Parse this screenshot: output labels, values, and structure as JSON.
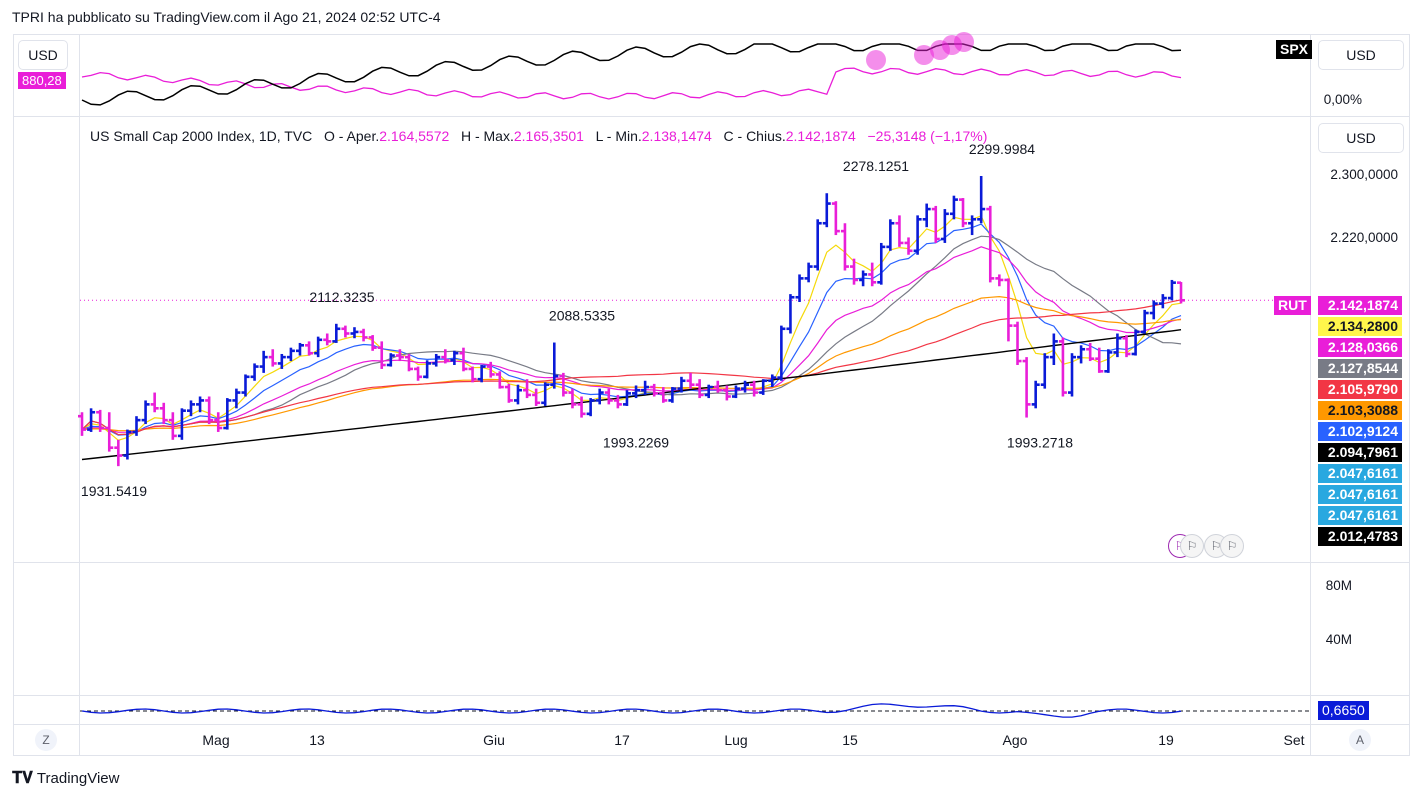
{
  "header": {
    "published": "TPRI ha pubblicato su TradingView.com il Ago 21, 2024 02:52 UTC-4"
  },
  "top_pane": {
    "currency_left": "USD",
    "currency_right": "USD",
    "value_badge": "880,28",
    "symbol_badge": "SPX",
    "pct_label": "0,00%"
  },
  "main_pane": {
    "currency_button": "USD",
    "legend": {
      "title": "US Small Cap 2000 Index, 1D, TVC",
      "open_label": "O - Aper.",
      "open": "2.164,5572",
      "high_label": "H - Max.",
      "high": "2.165,3501",
      "low_label": "L - Min.",
      "low": "2.138,1474",
      "close_label": "C - Chius.",
      "close": "2.142,1874",
      "change": "−25,3148 (−1,17%)"
    },
    "symbol_badge": "RUT",
    "price_badges": [
      {
        "text": "2.142,1874",
        "value": 2142.1874,
        "bg": "#e91ed8",
        "fg": "#ffffff"
      },
      {
        "text": "2.134,2800",
        "value": 2134.28,
        "bg": "#fff64b",
        "fg": "#131722"
      },
      {
        "text": "2.128,0366",
        "value": 2128.0366,
        "bg": "#e91ed8",
        "fg": "#ffffff"
      },
      {
        "text": "2.127,8544",
        "value": 2127.8544,
        "bg": "#787b86",
        "fg": "#ffffff"
      },
      {
        "text": "2.105,9790",
        "value": 2105.979,
        "bg": "#f23645",
        "fg": "#ffffff"
      },
      {
        "text": "2.103,3088",
        "value": 2103.3088,
        "bg": "#ff9800",
        "fg": "#131722"
      },
      {
        "text": "2.102,9124",
        "value": 2102.9124,
        "bg": "#2962ff",
        "fg": "#ffffff"
      },
      {
        "text": "2.094,7961",
        "value": 2094.7961,
        "bg": "#000000",
        "fg": "#ffffff"
      },
      {
        "text": "2.047,6161",
        "value": 2047.6161,
        "bg": "#29a8e0",
        "fg": "#ffffff"
      },
      {
        "text": "2.047,6161",
        "value": 2047.6161,
        "bg": "#29a8e0",
        "fg": "#ffffff"
      },
      {
        "text": "2.047,6161",
        "value": 2047.6161,
        "bg": "#29a8e0",
        "fg": "#ffffff"
      },
      {
        "text": "2.012,4783",
        "value": 2012.4783,
        "bg": "#000000",
        "fg": "#ffffff"
      }
    ]
  },
  "volume_pane": {
    "labels": [
      "80M",
      "40M"
    ]
  },
  "osc_pane": {
    "badge": "0,6650"
  },
  "bottom_bar": {
    "left_btn": "Z",
    "right_btn": "A"
  },
  "footer": {
    "brand": "TradingView"
  },
  "chart_data": {
    "type": "ohlc",
    "title": "US Small Cap 2000 Index, 1D, TVC",
    "y_axis_ticks": [
      "2.300,0000",
      "2.220,0000"
    ],
    "y_axis_values": [
      2300,
      2220
    ],
    "x_axis_labels": [
      "Mag",
      "13",
      "Giu",
      "17",
      "Lug",
      "15",
      "Ago",
      "19",
      "Set"
    ],
    "annotations": [
      {
        "text": "2112.3235",
        "value": 2112.3235,
        "kind": "high"
      },
      {
        "text": "2088.5335",
        "value": 2088.5335,
        "kind": "high"
      },
      {
        "text": "2278.1251",
        "value": 2278.1251,
        "kind": "high"
      },
      {
        "text": "2299.9984",
        "value": 2299.9984,
        "kind": "high"
      },
      {
        "text": "1931.5419",
        "value": 1931.5419,
        "kind": "low"
      },
      {
        "text": "1993.2269",
        "value": 1993.2269,
        "kind": "low"
      },
      {
        "text": "1993.2718",
        "value": 1993.2718,
        "kind": "low"
      }
    ],
    "last_close": 2142.1874,
    "bars": [
      [
        1995,
        2000,
        1970,
        1978
      ],
      [
        1978,
        2005,
        1975,
        2000
      ],
      [
        2000,
        2003,
        1975,
        1980
      ],
      [
        1980,
        2000,
        1950,
        1955
      ],
      [
        1955,
        1965,
        1931.5419,
        1945
      ],
      [
        1945,
        1978,
        1940,
        1975
      ],
      [
        1975,
        1995,
        1970,
        1990
      ],
      [
        1990,
        2015,
        1985,
        2010
      ],
      [
        2010,
        2025,
        2000,
        2005
      ],
      [
        2005,
        2012,
        1985,
        1990
      ],
      [
        1990,
        2000,
        1965,
        1970
      ],
      [
        1970,
        2005,
        1965,
        2002
      ],
      [
        2002,
        2015,
        1995,
        2010
      ],
      [
        2010,
        2020,
        2000,
        2015
      ],
      [
        2015,
        2020,
        1985,
        1990
      ],
      [
        1990,
        2000,
        1975,
        1980
      ],
      [
        1980,
        2018,
        1978,
        2015
      ],
      [
        2015,
        2030,
        2005,
        2025
      ],
      [
        2025,
        2048,
        2020,
        2045
      ],
      [
        2045,
        2062,
        2040,
        2058
      ],
      [
        2058,
        2078,
        2050,
        2070
      ],
      [
        2070,
        2080,
        2058,
        2062
      ],
      [
        2062,
        2074,
        2055,
        2070
      ],
      [
        2070,
        2082,
        2065,
        2078
      ],
      [
        2078,
        2088,
        2072,
        2085
      ],
      [
        2085,
        2090,
        2072,
        2075
      ],
      [
        2075,
        2096,
        2070,
        2092
      ],
      [
        2092,
        2100,
        2085,
        2090
      ],
      [
        2090,
        2112.3235,
        2088,
        2106
      ],
      [
        2106,
        2110,
        2095,
        2100
      ],
      [
        2100,
        2108,
        2094,
        2102
      ],
      [
        2102,
        2106,
        2090,
        2095
      ],
      [
        2095,
        2098,
        2078,
        2082
      ],
      [
        2082,
        2090,
        2055,
        2060
      ],
      [
        2060,
        2075,
        2058,
        2072
      ],
      [
        2072,
        2080,
        2065,
        2070
      ],
      [
        2070,
        2074,
        2052,
        2055
      ],
      [
        2055,
        2058,
        2040,
        2045
      ],
      [
        2045,
        2066,
        2043,
        2062
      ],
      [
        2062,
        2074,
        2058,
        2070
      ],
      [
        2070,
        2080,
        2062,
        2066
      ],
      [
        2066,
        2078,
        2060,
        2075
      ],
      [
        2075,
        2082,
        2052,
        2055
      ],
      [
        2055,
        2058,
        2038,
        2042
      ],
      [
        2042,
        2060,
        2038,
        2058
      ],
      [
        2058,
        2064,
        2044,
        2048
      ],
      [
        2048,
        2052,
        2030,
        2032
      ],
      [
        2032,
        2036,
        2012,
        2015
      ],
      [
        2015,
        2035,
        2010,
        2028
      ],
      [
        2028,
        2042,
        2018,
        2022
      ],
      [
        2022,
        2030,
        2008,
        2012
      ],
      [
        2012,
        2038,
        2008,
        2035
      ],
      [
        2035,
        2088.5335,
        2030,
        2046
      ],
      [
        2046,
        2050,
        2020,
        2025
      ],
      [
        2025,
        2030,
        2005,
        2010
      ],
      [
        2010,
        2020,
        1993.2269,
        1998
      ],
      [
        1998,
        2018,
        1995,
        2015
      ],
      [
        2015,
        2030,
        2010,
        2025
      ],
      [
        2025,
        2030,
        2010,
        2015
      ],
      [
        2015,
        2022,
        2005,
        2010
      ],
      [
        2010,
        2028,
        2008,
        2024
      ],
      [
        2024,
        2034,
        2018,
        2028
      ],
      [
        2028,
        2040,
        2022,
        2032
      ],
      [
        2032,
        2036,
        2020,
        2024
      ],
      [
        2024,
        2032,
        2012,
        2015
      ],
      [
        2015,
        2032,
        2012,
        2030
      ],
      [
        2030,
        2045,
        2025,
        2040
      ],
      [
        2040,
        2050,
        2030,
        2035
      ],
      [
        2035,
        2042,
        2018,
        2022
      ],
      [
        2022,
        2035,
        2018,
        2032
      ],
      [
        2032,
        2040,
        2025,
        2028
      ],
      [
        2028,
        2034,
        2015,
        2020
      ],
      [
        2020,
        2034,
        2018,
        2030
      ],
      [
        2030,
        2040,
        2025,
        2035
      ],
      [
        2035,
        2040,
        2020,
        2025
      ],
      [
        2025,
        2042,
        2022,
        2040
      ],
      [
        2040,
        2048,
        2032,
        2044
      ],
      [
        2044,
        2110,
        2040,
        2106
      ],
      [
        2106,
        2150,
        2100,
        2146
      ],
      [
        2146,
        2175,
        2140,
        2170
      ],
      [
        2170,
        2190,
        2165,
        2185
      ],
      [
        2185,
        2245,
        2180,
        2240
      ],
      [
        2240,
        2278.1251,
        2235,
        2265
      ],
      [
        2265,
        2268,
        2225,
        2230
      ],
      [
        2230,
        2240,
        2180,
        2185
      ],
      [
        2185,
        2195,
        2162,
        2168
      ],
      [
        2168,
        2180,
        2160,
        2175
      ],
      [
        2175,
        2190,
        2160,
        2165
      ],
      [
        2165,
        2215,
        2162,
        2210
      ],
      [
        2210,
        2245,
        2205,
        2240
      ],
      [
        2240,
        2250,
        2210,
        2215
      ],
      [
        2215,
        2222,
        2200,
        2205
      ],
      [
        2205,
        2250,
        2200,
        2245
      ],
      [
        2245,
        2265,
        2235,
        2258
      ],
      [
        2258,
        2262,
        2215,
        2220
      ],
      [
        2220,
        2258,
        2215,
        2252
      ],
      [
        2252,
        2275,
        2245,
        2270
      ],
      [
        2270,
        2272,
        2235,
        2240
      ],
      [
        2240,
        2250,
        2225,
        2245
      ],
      [
        2245,
        2299.9984,
        2240,
        2258
      ],
      [
        2258,
        2262,
        2165,
        2170
      ],
      [
        2170,
        2175,
        2160,
        2168
      ],
      [
        2168,
        2170,
        2090,
        2110
      ],
      [
        2110,
        2115,
        2060,
        2065
      ],
      [
        2065,
        2070,
        1993.2718,
        2010
      ],
      [
        2010,
        2040,
        2005,
        2035
      ],
      [
        2035,
        2075,
        2030,
        2070
      ],
      [
        2070,
        2100,
        2060,
        2090
      ],
      [
        2090,
        2095,
        2020,
        2025
      ],
      [
        2025,
        2075,
        2020,
        2070
      ],
      [
        2070,
        2085,
        2062,
        2080
      ],
      [
        2080,
        2088,
        2065,
        2068
      ],
      [
        2068,
        2082,
        2050,
        2052
      ],
      [
        2052,
        2080,
        2050,
        2076
      ],
      [
        2076,
        2100,
        2070,
        2094
      ],
      [
        2094,
        2098,
        2070,
        2074
      ],
      [
        2074,
        2105,
        2072,
        2102
      ],
      [
        2102,
        2130,
        2100,
        2126
      ],
      [
        2126,
        2142,
        2118,
        2138
      ],
      [
        2138,
        2150,
        2132,
        2145
      ],
      [
        2145,
        2168,
        2142,
        2164.5572
      ],
      [
        2164.5572,
        2165.3501,
        2138.1474,
        2142.1874
      ]
    ]
  }
}
